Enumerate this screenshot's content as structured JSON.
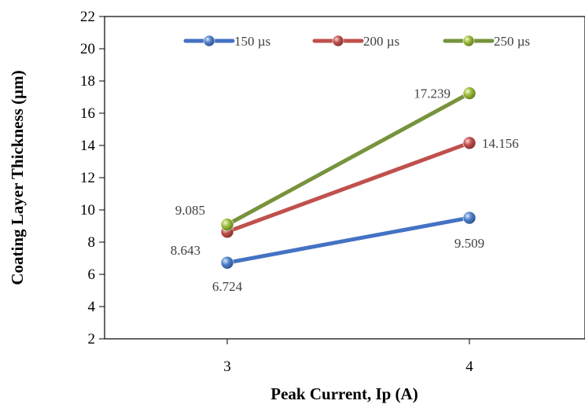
{
  "chart_data": {
    "type": "line",
    "x": [
      3,
      4
    ],
    "xlabel": "Peak Current, Ip (A)",
    "ylabel": "Coating Layer Thickness (µm)",
    "ylim": [
      2,
      22
    ],
    "yticks": [
      2,
      4,
      6,
      8,
      10,
      12,
      14,
      16,
      18,
      20,
      22
    ],
    "xticks": [
      "3",
      "4"
    ],
    "grid": false,
    "legend_position": "top",
    "series": [
      {
        "name": "150 µs",
        "color": "#4472c4",
        "values": [
          6.724,
          9.509
        ],
        "labels": [
          "6.724",
          "9.509"
        ]
      },
      {
        "name": "200 µs",
        "color": "#c0504d",
        "values": [
          8.643,
          14.156
        ],
        "labels": [
          "8.643",
          "14.156"
        ]
      },
      {
        "name": "250  µs",
        "color": "#77933c",
        "values": [
          9.085,
          17.239
        ],
        "labels": [
          "9.085",
          "17.239"
        ]
      }
    ]
  }
}
